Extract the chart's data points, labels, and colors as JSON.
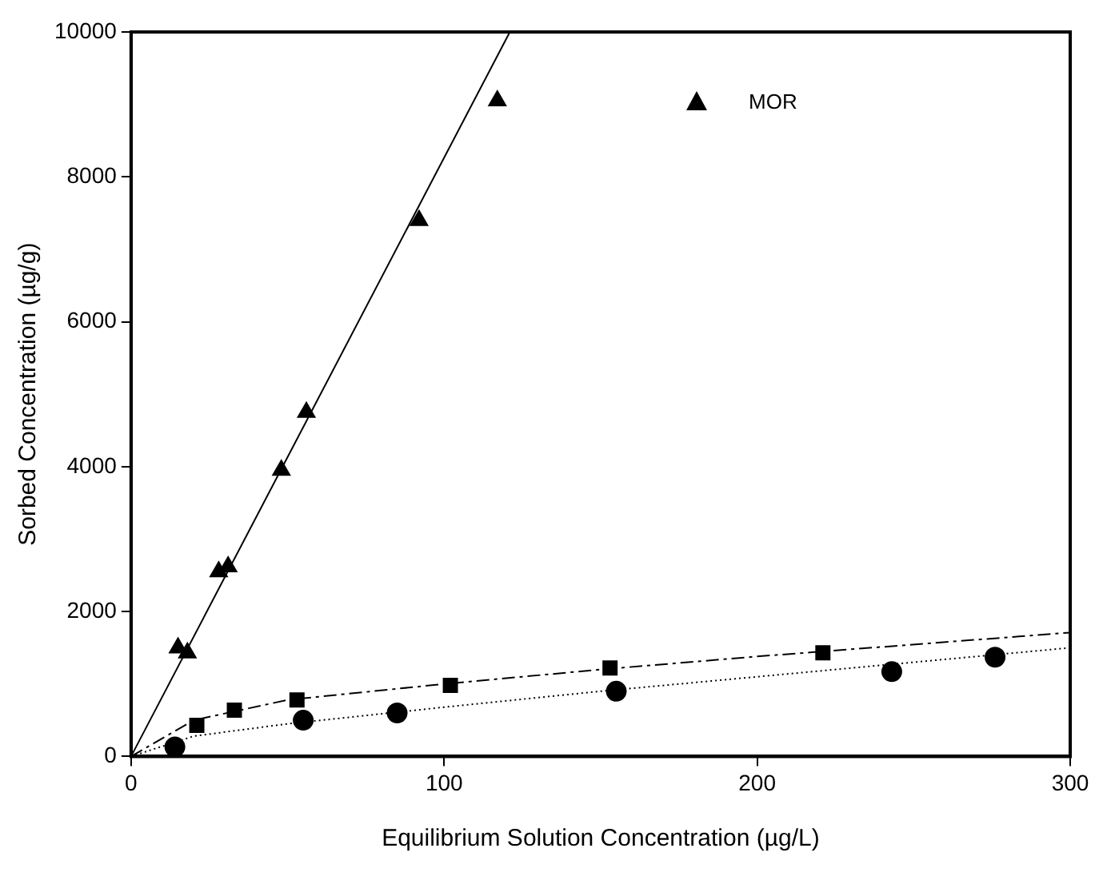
{
  "chart_data": {
    "type": "scatter",
    "xlabel": "Equilibrium Solution Concentration (µg/L)",
    "ylabel": "Sorbed Concentration (µg/g)",
    "xlim": [
      0,
      300
    ],
    "xticks": [
      0,
      100,
      200,
      300
    ],
    "ylim": [
      0,
      10000
    ],
    "yticks": [
      0,
      2000,
      4000,
      6000,
      8000,
      10000
    ],
    "grid": false,
    "legend": "top right",
    "series": [
      {
        "name": "MOR",
        "color": "#000000",
        "marker": "triangle",
        "x": [
          15,
          18,
          28,
          31,
          48,
          56,
          92,
          117
        ],
        "values": [
          1500,
          1430,
          2550,
          2620,
          3950,
          4750,
          7400,
          9050
        ]
      },
      {
        "color": "#000000",
        "marker": "circle",
        "x": [
          14,
          55,
          85,
          155,
          243,
          276
        ],
        "values": [
          130,
          500,
          600,
          900,
          1170,
          1370
        ]
      },
      {
        "color": "#000000",
        "marker": "square",
        "x": [
          21,
          33,
          53,
          102,
          153,
          221
        ],
        "values": [
          430,
          640,
          780,
          980,
          1220,
          1430
        ]
      },
      {
        "type": "line",
        "color": "#000000",
        "marker": "none",
        "line_style": "solid",
        "x": [
          0,
          121
        ],
        "values": [
          0,
          10000
        ]
      },
      {
        "type": "line",
        "color": "#000000",
        "marker": "none",
        "line_style": "dotted",
        "x": [
          0,
          20,
          50,
          100,
          150,
          200,
          300
        ],
        "values": [
          0,
          280,
          450,
          680,
          900,
          1100,
          1500
        ]
      },
      {
        "type": "line",
        "color": "#000000",
        "marker": "none",
        "line_style": "dashed",
        "x": [
          0,
          20,
          50,
          100,
          150,
          200,
          300
        ],
        "values": [
          0,
          500,
          780,
          1000,
          1200,
          1380,
          1710
        ]
      }
    ]
  }
}
